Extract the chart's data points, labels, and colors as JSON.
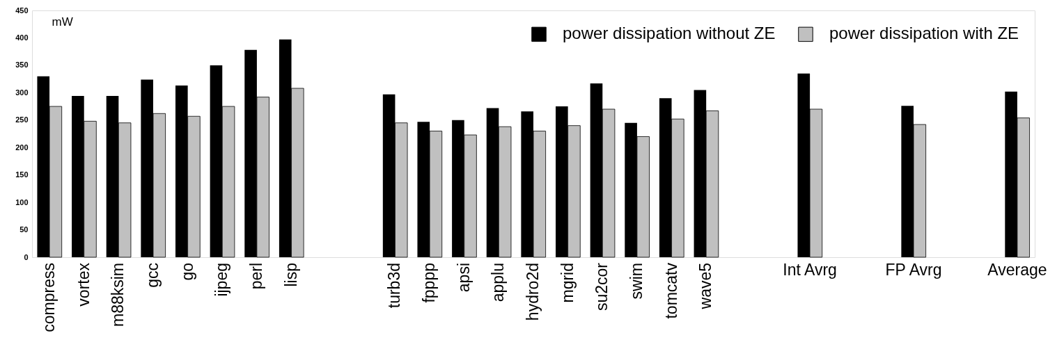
{
  "chart_data": {
    "type": "bar",
    "ylabel": "mW",
    "categories": [
      "compress",
      "vortex",
      "m88ksim",
      "gcc",
      "go",
      "ijpeg",
      "perl",
      "lisp",
      null,
      null,
      "turb3d",
      "fpppp",
      "apsi",
      "applu",
      "hydro2d",
      "mgrid",
      "su2cor",
      "swim",
      "tomcatv",
      "wave5",
      null,
      null,
      "Int Avrg",
      null,
      null,
      "FP Avrg",
      null,
      null,
      "Average"
    ],
    "series": [
      {
        "name": "power dissipation without ZE",
        "color": "#000000",
        "values": [
          330,
          294,
          294,
          324,
          313,
          350,
          378,
          397,
          null,
          null,
          297,
          247,
          250,
          272,
          266,
          275,
          317,
          245,
          290,
          305,
          null,
          null,
          335,
          null,
          null,
          276,
          null,
          null,
          302
        ]
      },
      {
        "name": "power dissipation with ZE",
        "color": "#c0c0c0",
        "values": [
          275,
          248,
          245,
          262,
          257,
          275,
          292,
          308,
          null,
          null,
          245,
          230,
          223,
          238,
          230,
          240,
          270,
          220,
          252,
          267,
          null,
          null,
          270,
          null,
          null,
          242,
          null,
          null,
          254
        ]
      }
    ],
    "ylim": [
      0,
      450
    ],
    "yticks": [
      0,
      50,
      100,
      150,
      200,
      250,
      300,
      350,
      400,
      450
    ],
    "legend": "top right",
    "grid": false
  }
}
